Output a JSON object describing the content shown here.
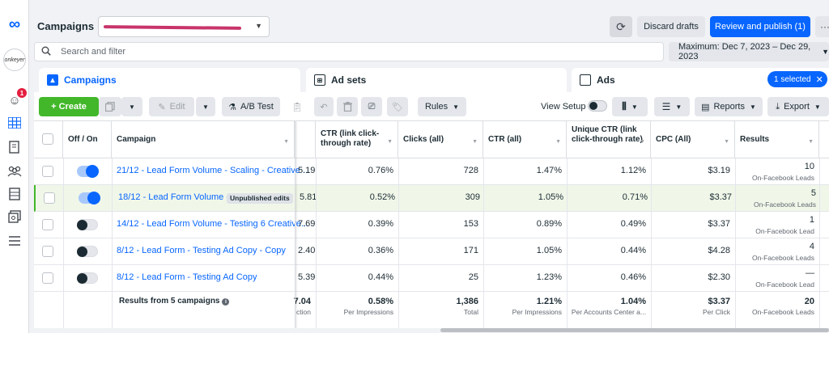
{
  "header": {
    "title": "Campaigns",
    "refresh_icon": "refresh-icon",
    "discard_label": "Discard drafts",
    "publish_label": "Review and publish (1)",
    "more_label": "···"
  },
  "search": {
    "placeholder": "Search and filter"
  },
  "date_range": {
    "label": "Maximum: Dec 7, 2023 – Dec 29, 2023"
  },
  "rail": {
    "account_label": "onkeyer",
    "notification_count": "1"
  },
  "tabs": [
    {
      "label": "Campaigns"
    },
    {
      "label": "Ad sets"
    },
    {
      "label": "Ads"
    }
  ],
  "selection_chip": {
    "label": "1 selected"
  },
  "toolbar": {
    "create_label": "+ Create",
    "edit_label": "Edit",
    "ab_label": "A/B Test",
    "rules_label": "Rules",
    "view_setup_label": "View Setup",
    "reports_label": "Reports",
    "export_label": "Export"
  },
  "table": {
    "columns": {
      "toggle": "Off / On",
      "campaign": "Campaign",
      "ctr_link": "CTR (link click-through rate)",
      "clicks": "Clicks (all)",
      "ctr_all": "CTR (all)",
      "unique_ctr": "Unique CTR (link click-through rate)",
      "cpc": "CPC (All)",
      "results": "Results"
    },
    "rows": [
      {
        "on": true,
        "name": "21/12 - Lead Form Volume - Scaling - Creative ...",
        "badge": "",
        "trunc": "5.19",
        "ctr_link": "0.76%",
        "clicks": "728",
        "ctr_all": "1.47%",
        "unique_ctr": "1.12%",
        "cpc": "$3.19",
        "results": "10",
        "results_sub": "On-Facebook Leads",
        "highlight": false
      },
      {
        "on": true,
        "name": "18/12 - Lead Form Volume - ...",
        "badge": "Unpublished edits",
        "trunc": "5.81",
        "ctr_link": "0.52%",
        "clicks": "309",
        "ctr_all": "1.05%",
        "unique_ctr": "0.71%",
        "cpc": "$3.37",
        "results": "5",
        "results_sub": "On-Facebook Leads",
        "highlight": true
      },
      {
        "on": false,
        "name": "14/12 - Lead Form Volume - Testing 6 Creative...",
        "badge": "",
        "trunc": "7.69",
        "ctr_link": "0.39%",
        "clicks": "153",
        "ctr_all": "0.89%",
        "unique_ctr": "0.49%",
        "cpc": "$3.37",
        "results": "1",
        "results_sub": "On-Facebook Lead",
        "highlight": false
      },
      {
        "on": false,
        "name": "8/12 - Lead Form - Testing Ad Copy - Copy",
        "badge": "",
        "trunc": "2.40",
        "ctr_link": "0.36%",
        "clicks": "171",
        "ctr_all": "1.05%",
        "unique_ctr": "0.44%",
        "cpc": "$4.28",
        "results": "4",
        "results_sub": "On-Facebook Leads",
        "highlight": false
      },
      {
        "on": false,
        "name": "8/12 - Lead Form - Testing Ad Copy",
        "badge": "",
        "trunc": "5.39",
        "ctr_link": "0.44%",
        "clicks": "25",
        "ctr_all": "1.23%",
        "unique_ctr": "0.46%",
        "cpc": "$2.30",
        "results": "—",
        "results_sub": "On-Facebook Lead",
        "highlight": false
      }
    ],
    "totals": {
      "label": "Results from 5 campaigns",
      "trunc": "7.04",
      "trunc_sub": "ction",
      "ctr_link": "0.58%",
      "ctr_link_sub": "Per Impressions",
      "clicks": "1,386",
      "clicks_sub": "Total",
      "ctr_all": "1.21%",
      "ctr_all_sub": "Per Impressions",
      "unique_ctr": "1.04%",
      "unique_ctr_sub": "Per Accounts Center a...",
      "cpc": "$3.37",
      "cpc_sub": "Per Click",
      "results": "20",
      "results_sub": "On-Facebook Leads"
    }
  },
  "colors": {
    "accent": "#0866ff",
    "create": "#42b72a",
    "redaction": "#c8346a"
  }
}
